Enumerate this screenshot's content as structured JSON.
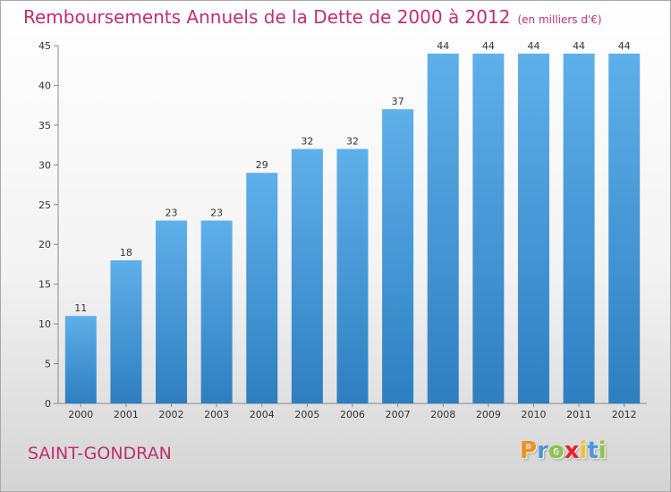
{
  "chart_data": {
    "type": "bar",
    "title": "Remboursements Annuels de la Dette de 2000 à 2012",
    "subtitle": "(en milliers d'€)",
    "categories": [
      "2000",
      "2001",
      "2002",
      "2003",
      "2004",
      "2005",
      "2006",
      "2007",
      "2008",
      "2009",
      "2010",
      "2011",
      "2012"
    ],
    "values": [
      11,
      18,
      23,
      23,
      29,
      32,
      32,
      37,
      44,
      44,
      44,
      44,
      44
    ],
    "ylim": [
      0,
      45
    ],
    "yticks": [
      0,
      5,
      10,
      15,
      20,
      25,
      30,
      35,
      40,
      45
    ],
    "grid": false,
    "bar_color": "#4a98d8",
    "text_color": "#c0306a"
  },
  "commune": "SAINT-GONDRAN",
  "logo": {
    "text": "Proxiti",
    "letters": [
      {
        "ch": "P",
        "color": "#f09020"
      },
      {
        "ch": "r",
        "color": "#4a98d8"
      },
      {
        "ch": "o",
        "color": "#8cc63f"
      },
      {
        "ch": "x",
        "color": "#e8202a"
      },
      {
        "ch": "i",
        "color": "#f0c020"
      },
      {
        "ch": "t",
        "color": "#4a98d8"
      },
      {
        "ch": "i",
        "color": "#8cc63f"
      }
    ]
  }
}
